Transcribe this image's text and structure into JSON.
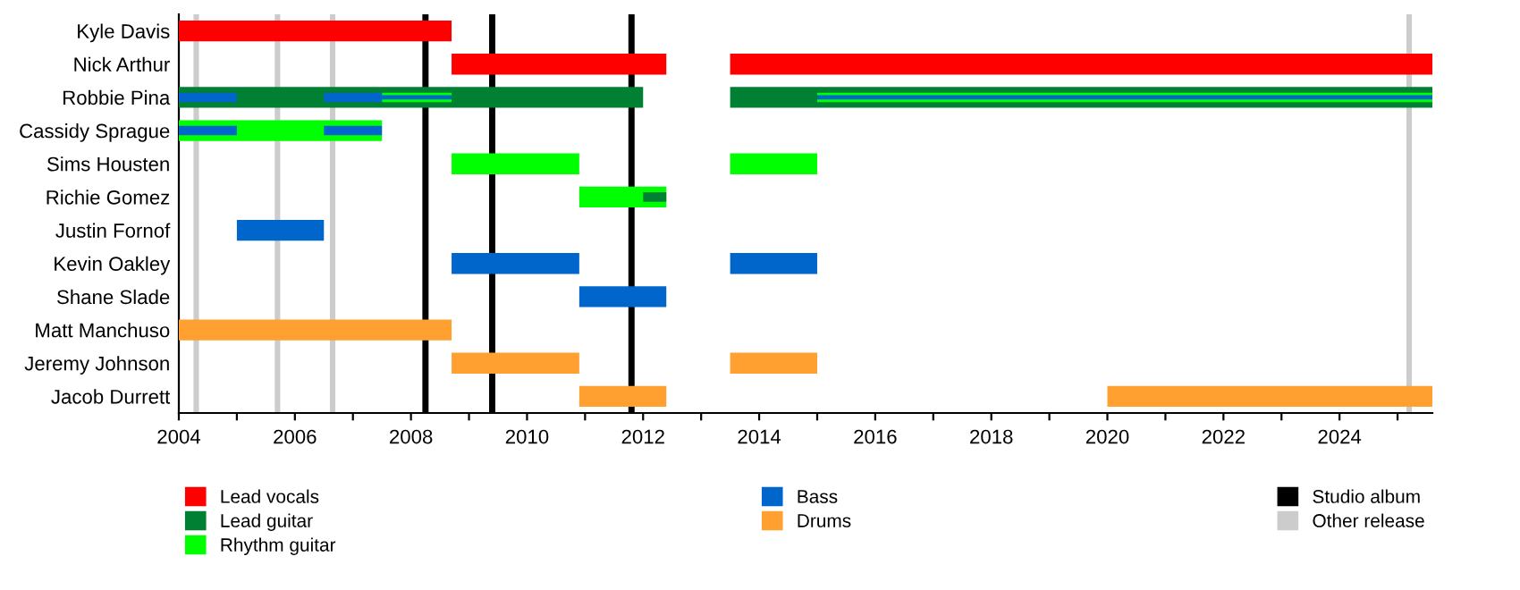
{
  "chart_data": {
    "type": "bar",
    "orientation": "horizontal",
    "categories": [
      "Kyle Davis",
      "Nick Arthur",
      "Robbie Pina",
      "Cassidy Sprague",
      "Sims Housten",
      "Richie Gomez",
      "Justin Fornof",
      "Kevin Oakley",
      "Shane Slade",
      "Matt Manchuso",
      "Jeremy Johnson",
      "Jacob Durrett"
    ],
    "series": [
      {
        "name": "Lead vocals",
        "color": "#ff0000",
        "values": [
          4.7,
          3.7,
          null,
          null,
          null,
          null,
          null,
          null,
          null,
          null,
          null,
          null
        ],
        "base": [
          2004,
          2008.7,
          null,
          null,
          null,
          null,
          null,
          null,
          null,
          null,
          null,
          null
        ]
      },
      {
        "color": "#ff0000",
        "values": [
          null,
          12.1,
          null,
          null,
          null,
          null,
          null,
          null,
          null,
          null,
          null,
          null
        ],
        "base": [
          null,
          2013.5,
          null,
          null,
          null,
          null,
          null,
          null,
          null,
          null,
          null,
          null
        ]
      },
      {
        "name": "Lead guitar",
        "color": "#008033",
        "values": [
          null,
          null,
          8.0,
          null,
          null,
          null,
          null,
          null,
          null,
          null,
          null,
          null
        ],
        "base": [
          null,
          null,
          2004,
          null,
          null,
          null,
          null,
          null,
          null,
          null,
          null,
          null
        ]
      },
      {
        "color": "#008033",
        "values": [
          null,
          null,
          12.1,
          null,
          null,
          null,
          null,
          null,
          null,
          null,
          null,
          null
        ],
        "base": [
          null,
          null,
          2013.5,
          null,
          null,
          null,
          null,
          null,
          null,
          null,
          null,
          null
        ]
      },
      {
        "name": "Rhythm guitar",
        "color": "#00ff00",
        "values": [
          null,
          null,
          1.2,
          3.5,
          2.2,
          1.5,
          null,
          null,
          null,
          null,
          null,
          null
        ],
        "base": [
          null,
          null,
          2007.5,
          2004,
          2008.7,
          2010.9,
          null,
          null,
          null,
          null,
          null,
          null
        ]
      },
      {
        "color": "#00ff00",
        "values": [
          null,
          null,
          10.6,
          null,
          1.5,
          null,
          null,
          null,
          null,
          null,
          null,
          null
        ],
        "base": [
          null,
          null,
          2015,
          null,
          2013.5,
          null,
          null,
          null,
          null,
          null,
          null,
          null
        ]
      },
      {
        "name": "Bass",
        "color": "#0066cc",
        "values": [
          null,
          null,
          1.0,
          1.0,
          null,
          null,
          1.5,
          2.2,
          1.5,
          null,
          null,
          null
        ],
        "base": [
          null,
          null,
          2004,
          2004,
          null,
          null,
          2005,
          2008.7,
          2010.9,
          null,
          null,
          null
        ]
      },
      {
        "color": "#0066cc",
        "values": [
          null,
          null,
          1.0,
          1.0,
          null,
          null,
          null,
          1.5,
          null,
          null,
          null,
          null
        ],
        "base": [
          null,
          null,
          2006.5,
          2006.5,
          null,
          null,
          null,
          2013.5,
          null,
          null,
          null,
          null
        ]
      },
      {
        "color": "#0066cc",
        "values": [
          null,
          null,
          1.2,
          null,
          null,
          null,
          null,
          null,
          null,
          null,
          null,
          null
        ],
        "base": [
          null,
          null,
          2007.5,
          null,
          null,
          null,
          null,
          null,
          null,
          null,
          null,
          null
        ]
      },
      {
        "color": "#0066cc",
        "values": [
          null,
          null,
          10.6,
          null,
          null,
          null,
          null,
          null,
          null,
          null,
          null,
          null
        ],
        "base": [
          null,
          null,
          2015,
          null,
          null,
          null,
          null,
          null,
          null,
          null,
          null,
          null
        ]
      },
      {
        "name": "Drums",
        "color": "#ffa030",
        "values": [
          null,
          null,
          null,
          null,
          null,
          null,
          null,
          null,
          null,
          4.7,
          2.2,
          1.5
        ],
        "base": [
          null,
          null,
          null,
          null,
          null,
          null,
          null,
          null,
          null,
          2004,
          2008.7,
          2010.9
        ]
      },
      {
        "color": "#ffa030",
        "values": [
          null,
          null,
          null,
          null,
          null,
          null,
          null,
          null,
          null,
          null,
          1.5,
          5.6
        ],
        "base": [
          null,
          null,
          null,
          null,
          null,
          null,
          null,
          null,
          null,
          null,
          2013.5,
          2020
        ]
      },
      {
        "color": "#008033",
        "values": [
          null,
          null,
          null,
          null,
          null,
          0.4,
          null,
          null,
          null,
          null,
          null,
          null
        ],
        "base": [
          null,
          null,
          null,
          null,
          null,
          2012.0,
          null,
          null,
          null,
          null,
          null,
          null
        ]
      }
    ],
    "xlim": [
      2004,
      2025.6
    ],
    "xticks": [
      2004,
      {
        "value": 2005,
        "label": null
      },
      2006,
      {
        "value": 2007,
        "label": null
      },
      2008,
      {
        "value": 2009,
        "label": null
      },
      2010,
      {
        "value": 2011,
        "label": null
      },
      2012,
      {
        "value": 2013,
        "label": null
      },
      2014,
      {
        "value": 2015,
        "label": null
      },
      2016,
      {
        "value": 2017,
        "label": null
      },
      2018,
      {
        "value": 2019,
        "label": null
      },
      2020,
      {
        "value": 2021,
        "label": null
      },
      2022,
      {
        "value": 2023,
        "label": null
      },
      2024,
      {
        "value": 2025,
        "label": null
      }
    ],
    "ref_lines": [
      {
        "axis": "x",
        "value": 2008.25,
        "label": "Studio album",
        "color": "#000000"
      },
      {
        "axis": "x",
        "value": 2009.4,
        "color": "#000000"
      },
      {
        "axis": "x",
        "value": 2011.8,
        "color": "#000000"
      },
      {
        "axis": "x",
        "value": 2004.3,
        "label": "Other release",
        "color": "#cccccc"
      },
      {
        "axis": "x",
        "value": 2005.7,
        "color": "#cccccc"
      },
      {
        "axis": "x",
        "value": 2006.65,
        "color": "#cccccc"
      },
      {
        "axis": "x",
        "value": 2025.2,
        "color": "#cccccc"
      }
    ],
    "legend": "bottom"
  }
}
